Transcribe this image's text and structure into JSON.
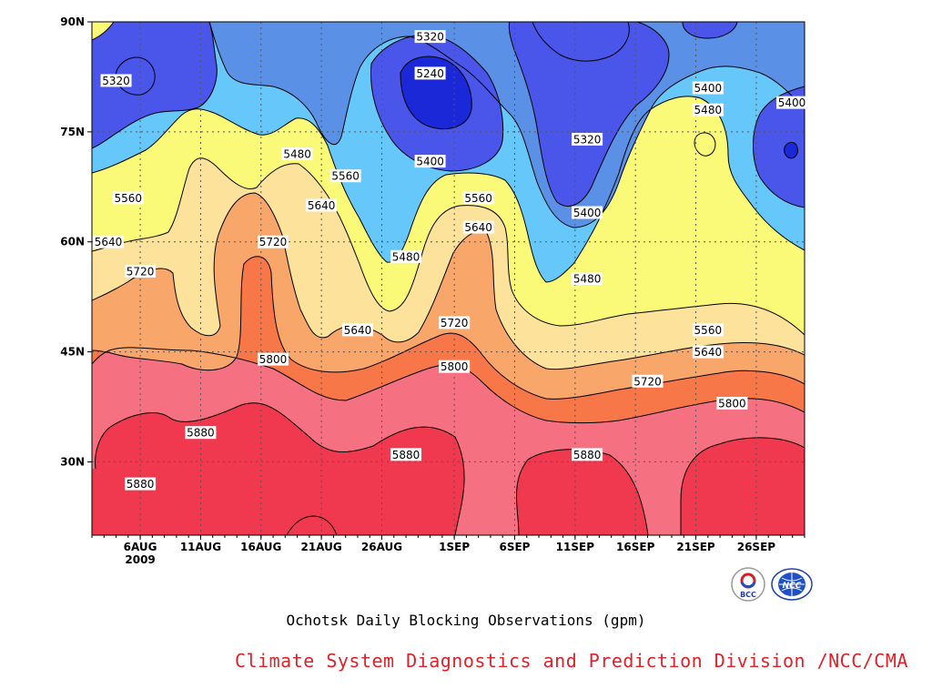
{
  "chart_data": {
    "type": "heatmap",
    "title": "Ochotsk Daily Blocking Observations (gpm)",
    "subtitle": "Climate System Diagnostics and Prediction Division /NCC/CMA",
    "year_label": "2009",
    "x_tick_labels": [
      "6AUG",
      "11AUG",
      "16AUG",
      "21AUG",
      "26AUG",
      "1SEP",
      "6SEP",
      "11SEP",
      "16SEP",
      "21SEP",
      "26SEP"
    ],
    "y_tick_labels": [
      "30N",
      "45N",
      "60N",
      "75N",
      "90N"
    ],
    "ylim": [
      20,
      90
    ],
    "xlim": [
      "2009-08-02",
      "2009-09-30"
    ],
    "grid": true,
    "contour_levels": [
      5240,
      5320,
      5400,
      5480,
      5560,
      5640,
      5720,
      5800,
      5880
    ],
    "level_colors": {
      "below_5240": "#1a28d8",
      "5240_5320": "#4a55ea",
      "5320_5400": "#5a90e6",
      "5400_5480": "#66c8fa",
      "5480_5560": "#fafa78",
      "5560_5640": "#fce29a",
      "5640_5720": "#f9a66a",
      "5720_5800": "#f77748",
      "5800_5880": "#f57080",
      "above_5880": "#f0384e"
    },
    "contour_labels": [
      {
        "date": "2009-08-04",
        "lat": 82,
        "value": 5320
      },
      {
        "date": "2009-08-19",
        "lat": 72,
        "value": 5480
      },
      {
        "date": "2009-08-23",
        "lat": 69,
        "value": 5560
      },
      {
        "date": "2009-08-05",
        "lat": 66,
        "value": 5560
      },
      {
        "date": "2009-08-21",
        "lat": 65,
        "value": 5640
      },
      {
        "date": "2009-08-02",
        "lat": 60,
        "value": 5640
      },
      {
        "date": "2009-08-06",
        "lat": 56,
        "value": 5720
      },
      {
        "date": "2009-08-17",
        "lat": 60,
        "value": 5720
      },
      {
        "date": "2009-08-24",
        "lat": 48,
        "value": 5640
      },
      {
        "date": "2009-08-17",
        "lat": 44,
        "value": 5800
      },
      {
        "date": "2009-08-11",
        "lat": 34,
        "value": 5880
      },
      {
        "date": "2009-08-06",
        "lat": 27,
        "value": 5880
      },
      {
        "date": "2009-08-28",
        "lat": 31,
        "value": 5880
      },
      {
        "date": "2009-08-30",
        "lat": 88,
        "value": 5320
      },
      {
        "date": "2009-08-30",
        "lat": 83,
        "value": 5240
      },
      {
        "date": "2009-08-30",
        "lat": 71,
        "value": 5400
      },
      {
        "date": "2009-08-28",
        "lat": 58,
        "value": 5480
      },
      {
        "date": "2009-09-03",
        "lat": 66,
        "value": 5560
      },
      {
        "date": "2009-09-03",
        "lat": 62,
        "value": 5640
      },
      {
        "date": "2009-09-01",
        "lat": 49,
        "value": 5720
      },
      {
        "date": "2009-09-01",
        "lat": 43,
        "value": 5800
      },
      {
        "date": "2009-09-12",
        "lat": 74,
        "value": 5320
      },
      {
        "date": "2009-09-12",
        "lat": 64,
        "value": 5400
      },
      {
        "date": "2009-09-12",
        "lat": 55,
        "value": 5480
      },
      {
        "date": "2009-09-12",
        "lat": 31,
        "value": 5880
      },
      {
        "date": "2009-09-22",
        "lat": 81,
        "value": 5400
      },
      {
        "date": "2009-09-22",
        "lat": 78,
        "value": 5480
      },
      {
        "date": "2009-09-30",
        "lat": 79,
        "value": 5400
      },
      {
        "date": "2009-09-22",
        "lat": 48,
        "value": 5560
      },
      {
        "date": "2009-09-22",
        "lat": 45,
        "value": 5640
      },
      {
        "date": "2009-09-17",
        "lat": 41,
        "value": 5720
      },
      {
        "date": "2009-09-24",
        "lat": 38,
        "value": 5800
      }
    ]
  },
  "logos": {
    "left_logo_text": "BCC",
    "right_logo_text": "NCC"
  }
}
